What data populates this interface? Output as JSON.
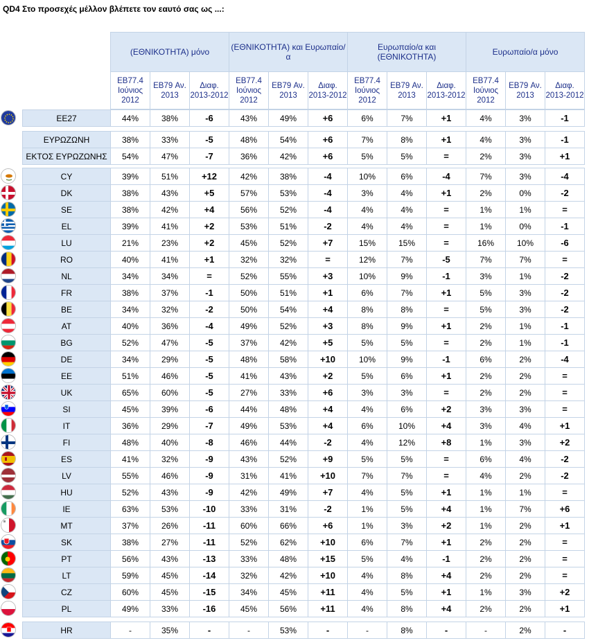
{
  "title": "QD4 Στο προσεχές μέλλον βλέπετε τον εαυτό σας ως ...:",
  "groups": [
    {
      "label": "(ΕΘΝΙΚΟΤΗΤΑ) μόνο"
    },
    {
      "label": "(ΕΘΝΙΚΟΤΗΤΑ) και Ευρωπαίο/α"
    },
    {
      "label": "Ευρωπαίο/α και (ΕΘΝΙΚΟΤΗΤΑ)"
    },
    {
      "label": "Ευρωπαίο/α μόνο"
    }
  ],
  "subheaders": [
    "EB77.4 Ιούνιος 2012",
    "EB79 Αν. 2013",
    "Διαφ. 2013-2012"
  ],
  "sections": [
    {
      "rows": [
        {
          "label": "EE27",
          "flag": "eu",
          "values": [
            "44%",
            "38%",
            "-6",
            "43%",
            "49%",
            "+6",
            "6%",
            "7%",
            "+1",
            "4%",
            "3%",
            "-1"
          ]
        }
      ]
    },
    {
      "rows": [
        {
          "label": "ΕΥΡΩΖΩΝΗ",
          "flag": "",
          "values": [
            "38%",
            "33%",
            "-5",
            "48%",
            "54%",
            "+6",
            "7%",
            "8%",
            "+1",
            "4%",
            "3%",
            "-1"
          ]
        },
        {
          "label": "ΕΚΤΟΣ ΕΥΡΩΖΩΝΗΣ",
          "flag": "",
          "values": [
            "54%",
            "47%",
            "-7",
            "36%",
            "42%",
            "+6",
            "5%",
            "5%",
            "=",
            "2%",
            "3%",
            "+1"
          ]
        }
      ]
    },
    {
      "rows": [
        {
          "label": "CY",
          "flag": "cy",
          "values": [
            "39%",
            "51%",
            "+12",
            "42%",
            "38%",
            "-4",
            "10%",
            "6%",
            "-4",
            "7%",
            "3%",
            "-4"
          ]
        },
        {
          "label": "DK",
          "flag": "dk",
          "values": [
            "38%",
            "43%",
            "+5",
            "57%",
            "53%",
            "-4",
            "3%",
            "4%",
            "+1",
            "2%",
            "0%",
            "-2"
          ]
        },
        {
          "label": "SE",
          "flag": "se",
          "values": [
            "38%",
            "42%",
            "+4",
            "56%",
            "52%",
            "-4",
            "4%",
            "4%",
            "=",
            "1%",
            "1%",
            "="
          ]
        },
        {
          "label": "EL",
          "flag": "el",
          "values": [
            "39%",
            "41%",
            "+2",
            "53%",
            "51%",
            "-2",
            "4%",
            "4%",
            "=",
            "1%",
            "0%",
            "-1"
          ]
        },
        {
          "label": "LU",
          "flag": "lu",
          "values": [
            "21%",
            "23%",
            "+2",
            "45%",
            "52%",
            "+7",
            "15%",
            "15%",
            "=",
            "16%",
            "10%",
            "-6"
          ]
        },
        {
          "label": "RO",
          "flag": "ro",
          "values": [
            "40%",
            "41%",
            "+1",
            "32%",
            "32%",
            "=",
            "12%",
            "7%",
            "-5",
            "7%",
            "7%",
            "="
          ]
        },
        {
          "label": "NL",
          "flag": "nl",
          "values": [
            "34%",
            "34%",
            "=",
            "52%",
            "55%",
            "+3",
            "10%",
            "9%",
            "-1",
            "3%",
            "1%",
            "-2"
          ]
        },
        {
          "label": "FR",
          "flag": "fr",
          "values": [
            "38%",
            "37%",
            "-1",
            "50%",
            "51%",
            "+1",
            "6%",
            "7%",
            "+1",
            "5%",
            "3%",
            "-2"
          ]
        },
        {
          "label": "BE",
          "flag": "be",
          "values": [
            "34%",
            "32%",
            "-2",
            "50%",
            "54%",
            "+4",
            "8%",
            "8%",
            "=",
            "5%",
            "3%",
            "-2"
          ]
        },
        {
          "label": "AT",
          "flag": "at",
          "values": [
            "40%",
            "36%",
            "-4",
            "49%",
            "52%",
            "+3",
            "8%",
            "9%",
            "+1",
            "2%",
            "1%",
            "-1"
          ]
        },
        {
          "label": "BG",
          "flag": "bg",
          "values": [
            "52%",
            "47%",
            "-5",
            "37%",
            "42%",
            "+5",
            "5%",
            "5%",
            "=",
            "2%",
            "1%",
            "-1"
          ]
        },
        {
          "label": "DE",
          "flag": "de",
          "values": [
            "34%",
            "29%",
            "-5",
            "48%",
            "58%",
            "+10",
            "10%",
            "9%",
            "-1",
            "6%",
            "2%",
            "-4"
          ]
        },
        {
          "label": "EE",
          "flag": "ee",
          "values": [
            "51%",
            "46%",
            "-5",
            "41%",
            "43%",
            "+2",
            "5%",
            "6%",
            "+1",
            "2%",
            "2%",
            "="
          ]
        },
        {
          "label": "UK",
          "flag": "uk",
          "values": [
            "65%",
            "60%",
            "-5",
            "27%",
            "33%",
            "+6",
            "3%",
            "3%",
            "=",
            "2%",
            "2%",
            "="
          ]
        },
        {
          "label": "SI",
          "flag": "si",
          "values": [
            "45%",
            "39%",
            "-6",
            "44%",
            "48%",
            "+4",
            "4%",
            "6%",
            "+2",
            "3%",
            "3%",
            "="
          ]
        },
        {
          "label": "IT",
          "flag": "it",
          "values": [
            "36%",
            "29%",
            "-7",
            "49%",
            "53%",
            "+4",
            "6%",
            "10%",
            "+4",
            "3%",
            "4%",
            "+1"
          ]
        },
        {
          "label": "FI",
          "flag": "fi",
          "values": [
            "48%",
            "40%",
            "-8",
            "46%",
            "44%",
            "-2",
            "4%",
            "12%",
            "+8",
            "1%",
            "3%",
            "+2"
          ]
        },
        {
          "label": "ES",
          "flag": "es",
          "values": [
            "41%",
            "32%",
            "-9",
            "43%",
            "52%",
            "+9",
            "5%",
            "5%",
            "=",
            "6%",
            "4%",
            "-2"
          ]
        },
        {
          "label": "LV",
          "flag": "lv",
          "values": [
            "55%",
            "46%",
            "-9",
            "31%",
            "41%",
            "+10",
            "7%",
            "7%",
            "=",
            "4%",
            "2%",
            "-2"
          ]
        },
        {
          "label": "HU",
          "flag": "hu",
          "values": [
            "52%",
            "43%",
            "-9",
            "42%",
            "49%",
            "+7",
            "4%",
            "5%",
            "+1",
            "1%",
            "1%",
            "="
          ]
        },
        {
          "label": "IE",
          "flag": "ie",
          "values": [
            "63%",
            "53%",
            "-10",
            "33%",
            "31%",
            "-2",
            "1%",
            "5%",
            "+4",
            "1%",
            "7%",
            "+6"
          ]
        },
        {
          "label": "MT",
          "flag": "mt",
          "values": [
            "37%",
            "26%",
            "-11",
            "60%",
            "66%",
            "+6",
            "1%",
            "3%",
            "+2",
            "1%",
            "2%",
            "+1"
          ]
        },
        {
          "label": "SK",
          "flag": "sk",
          "values": [
            "38%",
            "27%",
            "-11",
            "52%",
            "62%",
            "+10",
            "6%",
            "7%",
            "+1",
            "2%",
            "2%",
            "="
          ]
        },
        {
          "label": "PT",
          "flag": "pt",
          "values": [
            "56%",
            "43%",
            "-13",
            "33%",
            "48%",
            "+15",
            "5%",
            "4%",
            "-1",
            "2%",
            "2%",
            "="
          ]
        },
        {
          "label": "LT",
          "flag": "lt",
          "values": [
            "59%",
            "45%",
            "-14",
            "32%",
            "42%",
            "+10",
            "4%",
            "8%",
            "+4",
            "2%",
            "2%",
            "="
          ]
        },
        {
          "label": "CZ",
          "flag": "cz",
          "values": [
            "60%",
            "45%",
            "-15",
            "34%",
            "45%",
            "+11",
            "4%",
            "5%",
            "+1",
            "1%",
            "3%",
            "+2"
          ]
        },
        {
          "label": "PL",
          "flag": "pl",
          "values": [
            "49%",
            "33%",
            "-16",
            "45%",
            "56%",
            "+11",
            "4%",
            "8%",
            "+4",
            "2%",
            "2%",
            "+1"
          ]
        }
      ]
    },
    {
      "rows": [
        {
          "label": "HR",
          "flag": "hr",
          "values": [
            "-",
            "35%",
            "-",
            "-",
            "53%",
            "-",
            "-",
            "8%",
            "-",
            "-",
            "2%",
            "-"
          ]
        }
      ]
    }
  ]
}
